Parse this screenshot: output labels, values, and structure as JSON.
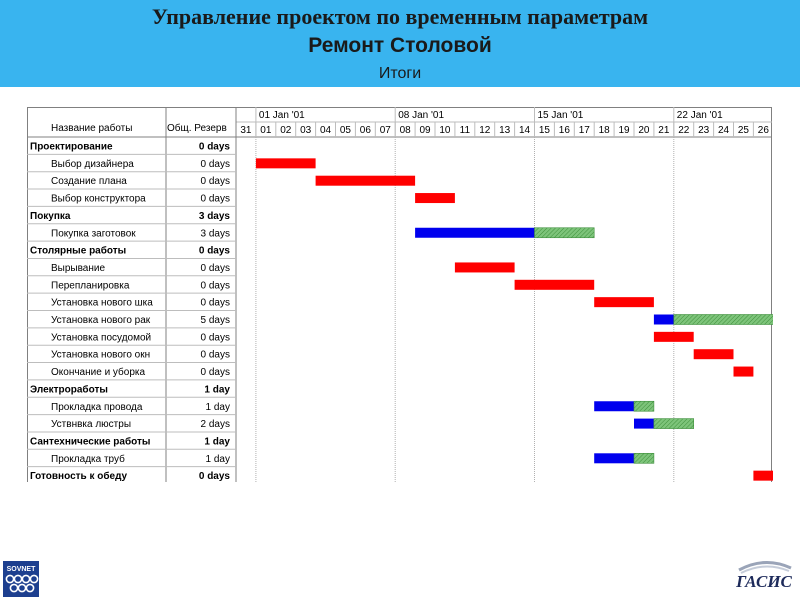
{
  "header": {
    "title": "Управление проектом по временным параметрам",
    "subtitle": "Ремонт Столовой",
    "caption": "Итоги"
  },
  "columns": {
    "name": "Название работы",
    "slack": "Общ. Резерв"
  },
  "weeks": [
    "01 Jan '01",
    "08 Jan '01",
    "15 Jan '01",
    "22 Jan '01"
  ],
  "days": [
    "31",
    "01",
    "02",
    "03",
    "04",
    "05",
    "06",
    "07",
    "08",
    "09",
    "10",
    "11",
    "12",
    "13",
    "14",
    "15",
    "16",
    "17",
    "18",
    "19",
    "20",
    "21",
    "22",
    "23",
    "24",
    "25",
    "26"
  ],
  "tasks": [
    {
      "name": "Проектирование",
      "slack": "0 days",
      "summary": true
    },
    {
      "name": "Выбор дизайнера",
      "slack": "0 days",
      "summary": false,
      "bar": {
        "start": 1,
        "end": 4,
        "color": "red"
      }
    },
    {
      "name": "Создание плана",
      "slack": "0 days",
      "summary": false,
      "bar": {
        "start": 4,
        "end": 9,
        "color": "red"
      }
    },
    {
      "name": "Выбор конструктора",
      "slack": "0 days",
      "summary": false,
      "bar": {
        "start": 9,
        "end": 11,
        "color": "red"
      }
    },
    {
      "name": "Покупка",
      "slack": "3 days",
      "summary": true
    },
    {
      "name": "Покупка заготовок",
      "slack": "3 days",
      "summary": false,
      "bar": {
        "start": 9,
        "end": 15,
        "color": "blue"
      },
      "slack_bar": {
        "start": 15,
        "end": 18
      }
    },
    {
      "name": "Столярные работы",
      "slack": "0 days",
      "summary": true
    },
    {
      "name": "Вырывание",
      "slack": "0 days",
      "summary": false,
      "bar": {
        "start": 11,
        "end": 14,
        "color": "red"
      }
    },
    {
      "name": "Перепланировка",
      "slack": "0 days",
      "summary": false,
      "bar": {
        "start": 14,
        "end": 18,
        "color": "red"
      }
    },
    {
      "name": "Установка нового шка",
      "slack": "0 days",
      "summary": false,
      "bar": {
        "start": 18,
        "end": 21,
        "color": "red"
      }
    },
    {
      "name": "Установка нового рак",
      "slack": "5 days",
      "summary": false,
      "bar": {
        "start": 21,
        "end": 22,
        "color": "blue"
      },
      "slack_bar": {
        "start": 22,
        "end": 27
      }
    },
    {
      "name": "Установка посудомой",
      "slack": "0 days",
      "summary": false,
      "bar": {
        "start": 21,
        "end": 23,
        "color": "red"
      }
    },
    {
      "name": "Установка нового окн",
      "slack": "0 days",
      "summary": false,
      "bar": {
        "start": 23,
        "end": 25,
        "color": "red"
      }
    },
    {
      "name": "Окончание и уборка",
      "slack": "0 days",
      "summary": false,
      "bar": {
        "start": 25,
        "end": 26,
        "color": "red"
      }
    },
    {
      "name": "Электроработы",
      "slack": "1 day",
      "summary": true
    },
    {
      "name": "Прокладка провода",
      "slack": "1 day",
      "summary": false,
      "bar": {
        "start": 18,
        "end": 20,
        "color": "blue"
      },
      "slack_bar": {
        "start": 20,
        "end": 21
      }
    },
    {
      "name": "Уствнвка люстры",
      "slack": "2 days",
      "summary": false,
      "bar": {
        "start": 20,
        "end": 21,
        "color": "blue"
      },
      "slack_bar": {
        "start": 21,
        "end": 23
      }
    },
    {
      "name": "Сантехнические работы",
      "slack": "1 day",
      "summary": true
    },
    {
      "name": "Прокладка труб",
      "slack": "1 day",
      "summary": false,
      "bar": {
        "start": 18,
        "end": 20,
        "color": "blue"
      },
      "slack_bar": {
        "start": 20,
        "end": 21
      }
    },
    {
      "name": "Готовность к обеду",
      "slack": "0 days",
      "summary": true,
      "bar": {
        "start": 26,
        "end": 27,
        "color": "red"
      }
    }
  ],
  "colors": {
    "header_bg": "#39b4ef",
    "critical": "#ff0000",
    "noncritical": "#0000ee",
    "slack": "#7dc47a",
    "grid": "#bdbdbd"
  },
  "logos": {
    "left": "SOVNET",
    "right": "ГАСИС"
  }
}
